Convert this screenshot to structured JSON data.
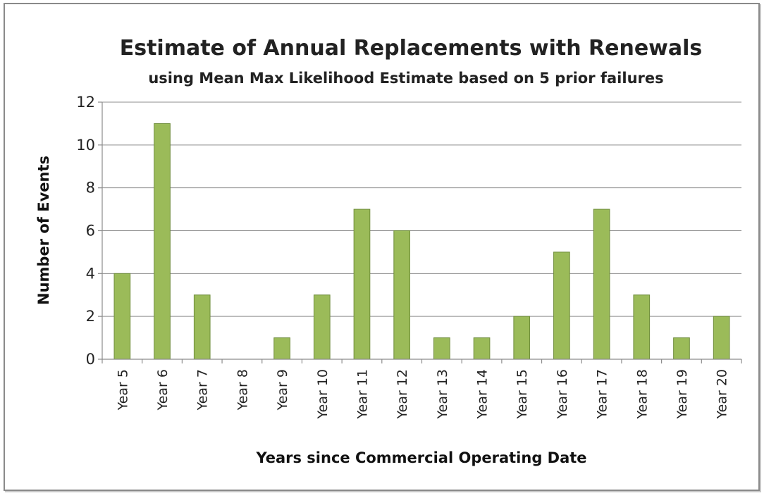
{
  "chart_data": {
    "type": "bar",
    "title": "Estimate of Annual Replacements with Renewals",
    "subtitle": "using Mean Max Likelihood Estimate based on 5 prior failures",
    "xlabel": "Years since Commercial Operating Date",
    "ylabel": "Number of Events",
    "categories": [
      "Year 5",
      "Year 6",
      "Year 7",
      "Year 8",
      "Year 9",
      "Year 10",
      "Year 11",
      "Year 12",
      "Year 13",
      "Year 14",
      "Year 15",
      "Year 16",
      "Year 17",
      "Year 18",
      "Year 19",
      "Year 20"
    ],
    "values": [
      4,
      11,
      3,
      0,
      1,
      3,
      7,
      6,
      1,
      1,
      2,
      5,
      7,
      3,
      1,
      2
    ],
    "ylim": [
      0,
      12
    ],
    "yticks": [
      0,
      2,
      4,
      6,
      8,
      10,
      12
    ],
    "grid": true,
    "legend": "none",
    "bar_color": "#9bbb59"
  }
}
